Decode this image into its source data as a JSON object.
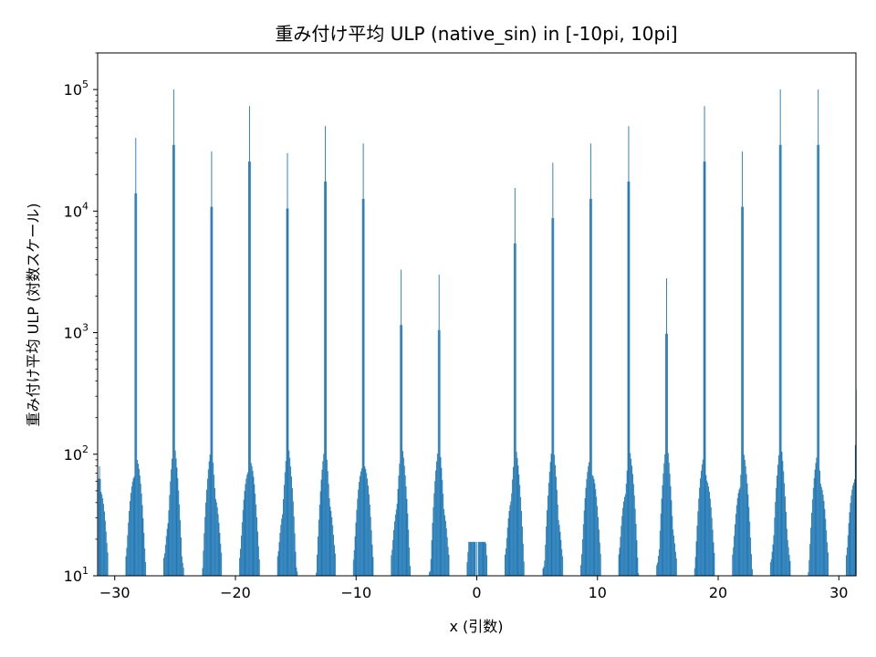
{
  "chart_data": {
    "type": "bar",
    "title": "重み付け平均 ULP (native_sin) in [-10pi, 10pi]",
    "xlabel": "x (引数)",
    "ylabel": "重み付け平均 ULP (対数スケール)",
    "xlim": [
      -31.416,
      31.416
    ],
    "ylim": [
      10,
      200000
    ],
    "yscale": "log",
    "grid": false,
    "legend": "none",
    "color": "#1f77b4",
    "x_ticks": [
      -30,
      -20,
      -10,
      0,
      10,
      20,
      30
    ],
    "x_tick_labels": [
      "−30",
      "−20",
      "−10",
      "0",
      "10",
      "20",
      "30"
    ],
    "y_ticks": [
      {
        "value": 10,
        "base": "10",
        "exp": "1"
      },
      {
        "value": 100,
        "base": "10",
        "exp": "2"
      },
      {
        "value": 1000,
        "base": "10",
        "exp": "3"
      },
      {
        "value": 10000,
        "base": "10",
        "exp": "4"
      },
      {
        "value": 100000,
        "base": "10",
        "exp": "5"
      }
    ],
    "peaks": [
      {
        "x": -31.416,
        "peak": 180
      },
      {
        "x": -28.274,
        "peak": 40000
      },
      {
        "x": -25.133,
        "peak": 100000
      },
      {
        "x": -21.991,
        "peak": 31000
      },
      {
        "x": -18.85,
        "peak": 73000
      },
      {
        "x": -15.708,
        "peak": 30000
      },
      {
        "x": -12.566,
        "peak": 50000
      },
      {
        "x": -9.425,
        "peak": 36000
      },
      {
        "x": -6.283,
        "peak": 3300
      },
      {
        "x": -3.142,
        "peak": 3000
      },
      {
        "x": 0.0,
        "peak": 19
      },
      {
        "x": 3.142,
        "peak": 15500
      },
      {
        "x": 6.283,
        "peak": 25000
      },
      {
        "x": 9.425,
        "peak": 36000
      },
      {
        "x": 12.566,
        "peak": 50000
      },
      {
        "x": 15.708,
        "peak": 2800
      },
      {
        "x": 18.85,
        "peak": 73000
      },
      {
        "x": 21.991,
        "peak": 31000
      },
      {
        "x": 25.133,
        "peak": 100000
      },
      {
        "x": 28.274,
        "peak": 100000
      },
      {
        "x": 31.416,
        "peak": 340
      }
    ]
  }
}
